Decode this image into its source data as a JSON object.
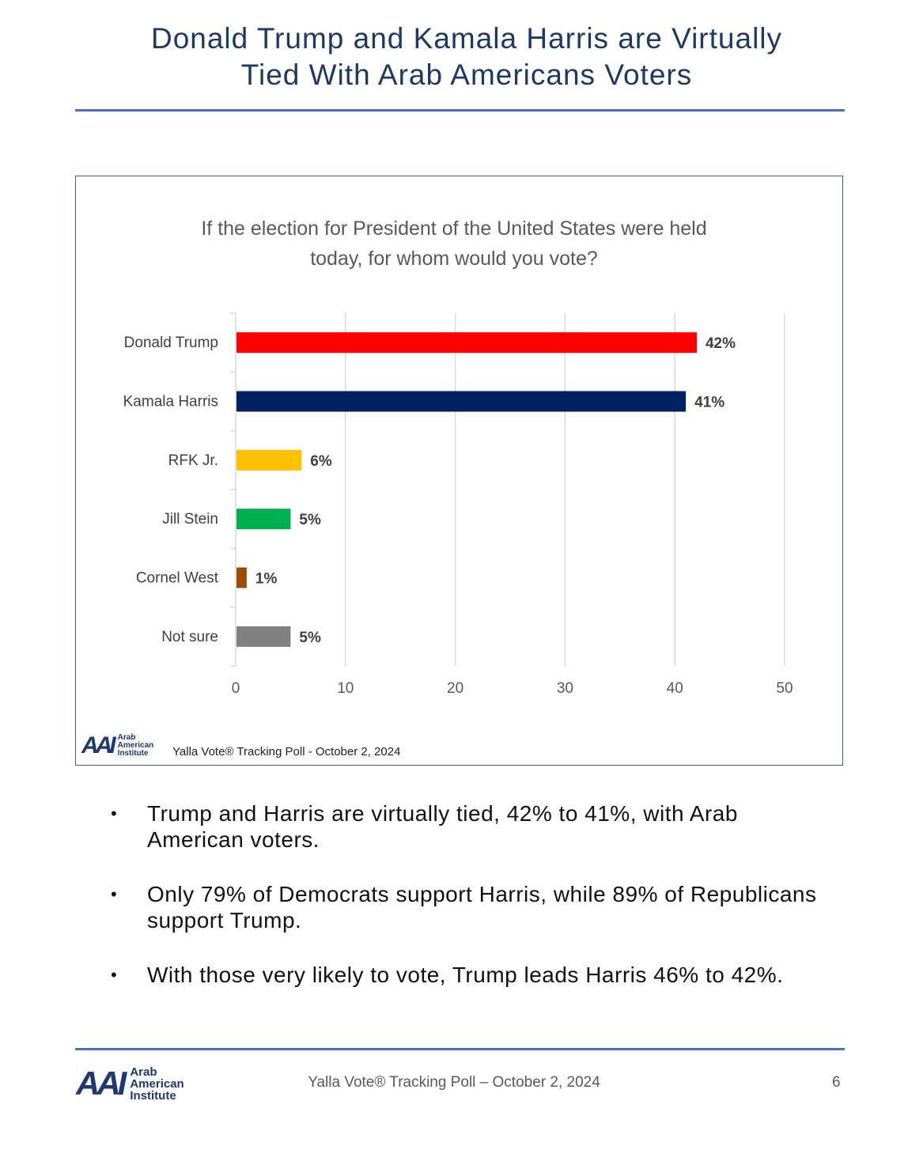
{
  "page": {
    "title_line1": "Donald Trump and Kamala Harris are Virtually",
    "title_line2": "Tied With Arab Americans Voters",
    "footer": "Yalla Vote® Tracking Poll – October 2, 2024",
    "page_number": "6"
  },
  "logo": {
    "mark": "AAI",
    "line1": "Arab",
    "line2": "American",
    "line3": "Institute"
  },
  "chart_data": {
    "type": "bar",
    "orientation": "horizontal",
    "title_line1": "If the election for President of the United States were held",
    "title_line2": "today, for whom would you vote?",
    "categories": [
      "Donald Trump",
      "Kamala Harris",
      "RFK Jr.",
      "Jill Stein",
      "Cornel West",
      "Not sure"
    ],
    "values": [
      42,
      41,
      6,
      5,
      1,
      5
    ],
    "data_labels": [
      "42%",
      "41%",
      "6%",
      "5%",
      "1%",
      "5%"
    ],
    "colors": [
      "#ff0000",
      "#002060",
      "#ffc000",
      "#00b050",
      "#9c4a06",
      "#808080"
    ],
    "xlim": [
      0,
      50
    ],
    "xticks": [
      0,
      10,
      20,
      30,
      40,
      50
    ],
    "grid": true,
    "source": "Yalla Vote® Tracking Poll - October 2, 2024"
  },
  "bullets": [
    "Trump and Harris are virtually tied, 42% to 41%, with Arab American voters.",
    "Only 79% of Democrats support Harris, while 89% of Republicans support Trump.",
    "With those very likely to vote, Trump leads Harris 46% to 42%."
  ]
}
